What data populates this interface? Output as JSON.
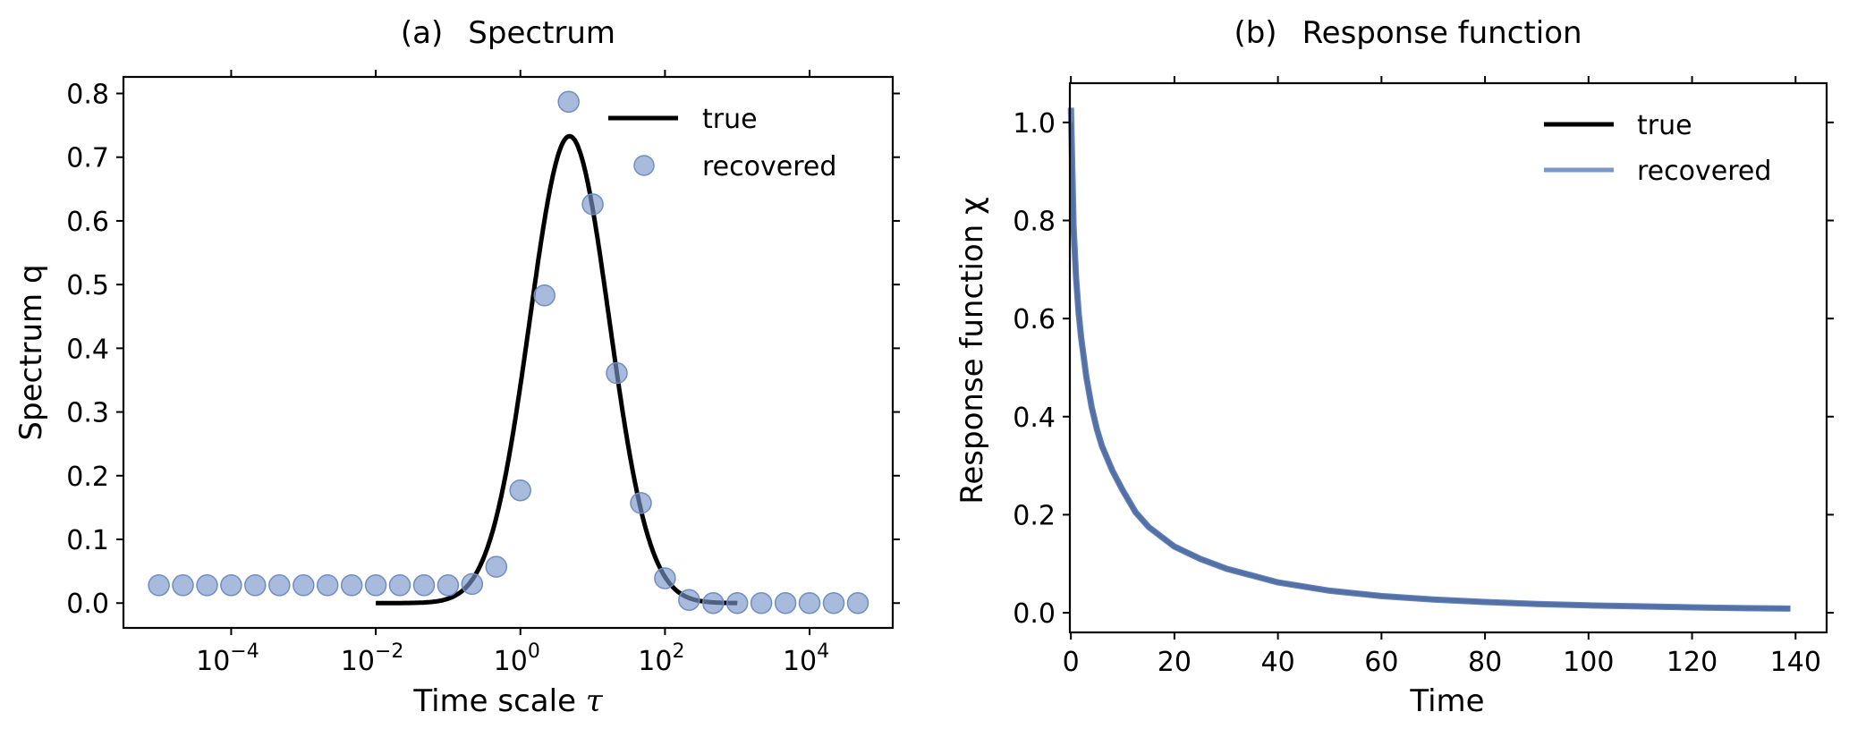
{
  "chart_data": [
    {
      "type": "line",
      "panel_label": "(a)",
      "title": "Spectrum",
      "xlabel_text": "Time scale",
      "xlabel_symbol": "τ",
      "ylabel": "Spectrum q",
      "xscale": "log",
      "xlim_log10": [
        -5.49,
        5.15
      ],
      "ylim": [
        -0.039,
        0.826
      ],
      "xticks_log10": [
        -4,
        -2,
        0,
        2,
        4
      ],
      "xtick_labels": [
        {
          "base": "10",
          "exp": "−4"
        },
        {
          "base": "10",
          "exp": "−2"
        },
        {
          "base": "10",
          "exp": "0"
        },
        {
          "base": "10",
          "exp": "2"
        },
        {
          "base": "10",
          "exp": "4"
        }
      ],
      "yticks": [
        0.0,
        0.1,
        0.2,
        0.3,
        0.4,
        0.5,
        0.6,
        0.7,
        0.8
      ],
      "ytick_labels": [
        "0.0",
        "0.1",
        "0.2",
        "0.3",
        "0.4",
        "0.5",
        "0.6",
        "0.7",
        "0.8"
      ],
      "grid": false,
      "legend_placement": "top-right",
      "series": [
        {
          "name": "true",
          "kind": "line",
          "color": "#000000",
          "model": "gaussian-in-log10",
          "peak": 0.733,
          "center_log10": 0.68,
          "sigma_log10": 0.55,
          "range_log10": [
            -2,
            3
          ]
        },
        {
          "name": "recovered",
          "kind": "scatter",
          "color": "#7b97c9",
          "x_log10": [
            -5,
            -4.667,
            -4.333,
            -4,
            -3.667,
            -3.333,
            -3,
            -2.667,
            -2.333,
            -2,
            -1.667,
            -1.333,
            -1,
            -0.667,
            -0.333,
            0,
            0.333,
            0.667,
            1,
            1.333,
            1.667,
            2,
            2.333,
            2.667,
            3,
            3.333,
            3.667,
            4,
            4.333,
            4.667
          ],
          "values": [
            0.028,
            0.028,
            0.028,
            0.028,
            0.028,
            0.028,
            0.028,
            0.028,
            0.028,
            0.028,
            0.028,
            0.028,
            0.028,
            0.03,
            0.057,
            0.177,
            0.483,
            0.787,
            0.626,
            0.361,
            0.157,
            0.039,
            0.005,
            0.0,
            0.0,
            0.0,
            0.0,
            0.0,
            0.0,
            0.0
          ]
        }
      ]
    },
    {
      "type": "line",
      "panel_label": "(b)",
      "title": "Response function",
      "xlabel": "Time",
      "ylabel": "Response function χ",
      "xlim": [
        -0.2,
        146
      ],
      "ylim": [
        -0.04,
        1.08
      ],
      "xticks": [
        0,
        20,
        40,
        60,
        80,
        100,
        120,
        140
      ],
      "xtick_labels": [
        "0",
        "20",
        "40",
        "60",
        "80",
        "100",
        "120",
        "140"
      ],
      "yticks": [
        0.0,
        0.2,
        0.4,
        0.6,
        0.8,
        1.0
      ],
      "ytick_labels": [
        "0.0",
        "0.2",
        "0.4",
        "0.6",
        "0.8",
        "1.0"
      ],
      "grid": false,
      "legend_placement": "top-right",
      "series": [
        {
          "name": "true",
          "kind": "line",
          "color": "#000000",
          "x": [
            0,
            0.5,
            1,
            1.5,
            2,
            3,
            4,
            5,
            6,
            8,
            10,
            12.5,
            15,
            20,
            25,
            30,
            40,
            50,
            60,
            70,
            80,
            90,
            100,
            110,
            120,
            130,
            139
          ],
          "values": [
            1.0,
            0.78,
            0.68,
            0.61,
            0.56,
            0.48,
            0.42,
            0.375,
            0.34,
            0.29,
            0.25,
            0.205,
            0.175,
            0.135,
            0.11,
            0.09,
            0.062,
            0.045,
            0.034,
            0.027,
            0.022,
            0.018,
            0.015,
            0.013,
            0.011,
            0.0095,
            0.0085
          ]
        },
        {
          "name": "recovered",
          "kind": "line",
          "color": "#5a7ab5",
          "x": [
            0,
            0.5,
            1,
            1.5,
            2,
            3,
            4,
            5,
            6,
            8,
            10,
            12.5,
            15,
            20,
            25,
            30,
            40,
            50,
            60,
            70,
            80,
            90,
            100,
            110,
            120,
            130,
            139
          ],
          "values": [
            1.03,
            0.79,
            0.685,
            0.612,
            0.56,
            0.48,
            0.42,
            0.375,
            0.34,
            0.29,
            0.25,
            0.205,
            0.175,
            0.135,
            0.11,
            0.09,
            0.062,
            0.045,
            0.034,
            0.027,
            0.022,
            0.018,
            0.015,
            0.013,
            0.011,
            0.0095,
            0.0085
          ]
        }
      ]
    }
  ]
}
